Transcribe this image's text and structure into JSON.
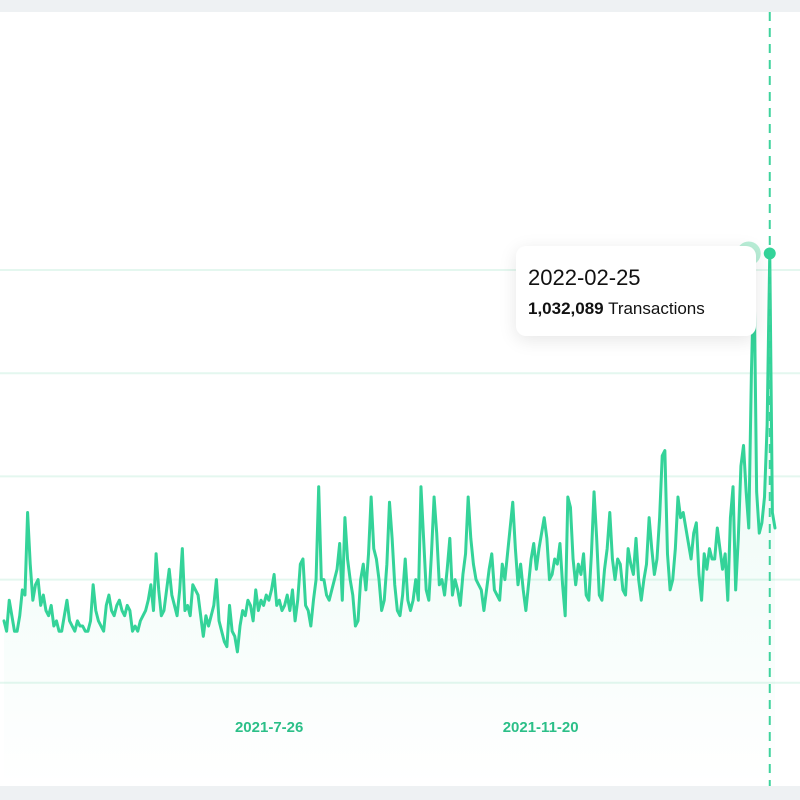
{
  "colors": {
    "line": "#34d399",
    "tick_text": "#2bbf88",
    "grid": "#e4f7ef",
    "crosshair": "#3fd39d",
    "marker_halo": "#a7eacd"
  },
  "tooltip": {
    "date": "2022-02-25",
    "value": "1,032,089",
    "unit": "Transactions"
  },
  "chart_data": {
    "type": "area",
    "x_ticks": [
      "2021-7-26",
      "2021-11-20"
    ],
    "x_range": [
      "2021-04-01",
      "2022-03-01"
    ],
    "y_unit": "Transactions",
    "y_range": [
      0,
      1500000
    ],
    "grid": true,
    "gridline_values": [
      1000000,
      800000,
      600000,
      400000,
      200000
    ],
    "series": [
      {
        "values": [
          320000,
          300000,
          360000,
          330000,
          300000,
          300000,
          330000,
          380000,
          370000,
          530000,
          430000,
          360000,
          390000,
          400000,
          350000,
          370000,
          340000,
          330000,
          350000,
          310000,
          320000,
          300000,
          300000,
          330000,
          360000,
          320000,
          310000,
          300000,
          320000,
          310000,
          310000,
          300000,
          300000,
          320000,
          390000,
          340000,
          320000,
          310000,
          300000,
          350000,
          370000,
          340000,
          330000,
          350000,
          360000,
          340000,
          330000,
          350000,
          340000,
          300000,
          310000,
          300000,
          320000,
          330000,
          340000,
          360000,
          390000,
          340000,
          450000,
          380000,
          330000,
          340000,
          380000,
          420000,
          370000,
          350000,
          330000,
          380000,
          460000,
          340000,
          350000,
          330000,
          390000,
          380000,
          370000,
          330000,
          290000,
          330000,
          310000,
          330000,
          350000,
          400000,
          320000,
          300000,
          280000,
          270000,
          350000,
          300000,
          290000,
          260000,
          310000,
          340000,
          330000,
          360000,
          350000,
          320000,
          380000,
          340000,
          360000,
          350000,
          370000,
          360000,
          380000,
          410000,
          350000,
          360000,
          340000,
          350000,
          370000,
          340000,
          380000,
          320000,
          360000,
          430000,
          440000,
          350000,
          340000,
          310000,
          360000,
          400000,
          580000,
          400000,
          400000,
          370000,
          360000,
          380000,
          400000,
          420000,
          470000,
          360000,
          520000,
          440000,
          400000,
          370000,
          310000,
          320000,
          400000,
          430000,
          380000,
          450000,
          560000,
          460000,
          440000,
          400000,
          340000,
          360000,
          430000,
          550000,
          480000,
          390000,
          340000,
          330000,
          370000,
          440000,
          360000,
          340000,
          360000,
          400000,
          360000,
          580000,
          480000,
          380000,
          360000,
          450000,
          560000,
          490000,
          390000,
          400000,
          370000,
          420000,
          480000,
          370000,
          400000,
          380000,
          350000,
          410000,
          450000,
          560000,
          480000,
          430000,
          400000,
          390000,
          380000,
          340000,
          380000,
          420000,
          450000,
          380000,
          370000,
          360000,
          430000,
          400000,
          450000,
          500000,
          550000,
          460000,
          390000,
          430000,
          380000,
          340000,
          390000,
          440000,
          470000,
          420000,
          460000,
          490000,
          520000,
          480000,
          400000,
          410000,
          440000,
          430000,
          470000,
          390000,
          330000,
          560000,
          540000,
          440000,
          390000,
          430000,
          410000,
          450000,
          370000,
          360000,
          450000,
          570000,
          480000,
          370000,
          360000,
          420000,
          460000,
          530000,
          440000,
          400000,
          440000,
          430000,
          380000,
          370000,
          460000,
          430000,
          410000,
          480000,
          400000,
          360000,
          400000,
          430000,
          520000,
          460000,
          410000,
          440000,
          520000,
          640000,
          650000,
          450000,
          380000,
          400000,
          460000,
          560000,
          520000,
          530000,
          500000,
          470000,
          440000,
          490000,
          510000,
          410000,
          360000,
          450000,
          420000,
          460000,
          440000,
          440000,
          500000,
          460000,
          420000,
          450000,
          360000,
          520000,
          580000,
          380000,
          480000,
          620000,
          660000,
          570000,
          500000,
          800000,
          1000000,
          570000,
          490000,
          510000,
          560000,
          700000,
          1032089,
          530000,
          500000
        ]
      }
    ]
  }
}
